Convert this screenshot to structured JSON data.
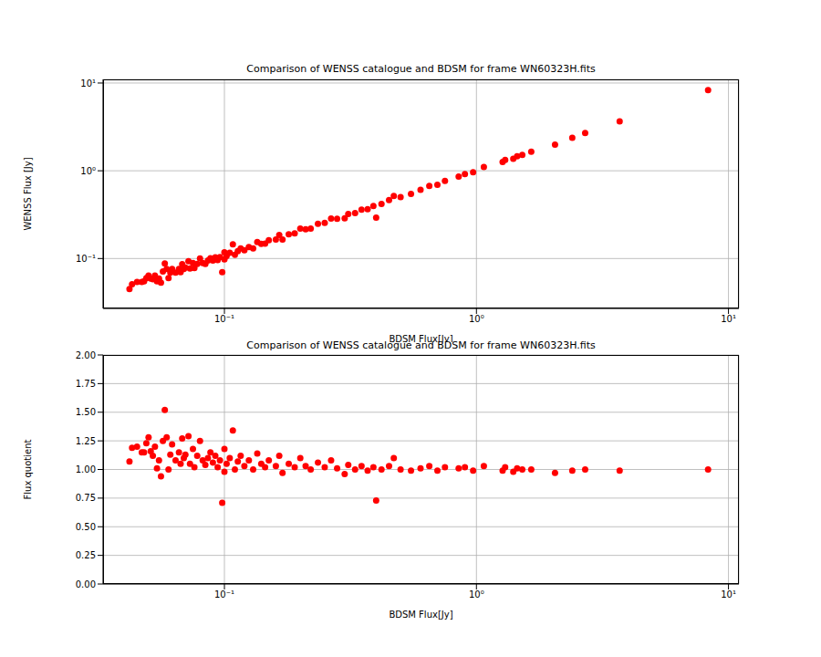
{
  "chart_data": [
    {
      "type": "scatter",
      "title": "Comparison of WENSS catalogue and BDSM for frame WN60323H.fits",
      "x_label": "BDSM Flux[Jy]",
      "y_label": "WENSS Flux [Jy]",
      "log": true,
      "grid": true,
      "color": "#ff0000",
      "marker": "o",
      "xlim": [
        0.033,
        11
      ],
      "ylim": [
        0.027,
        11
      ],
      "xticks": [
        {
          "value": 0.1,
          "label": "10⁻¹"
        },
        {
          "value": 1,
          "label": "10⁰"
        },
        {
          "value": 10,
          "label": "10¹"
        }
      ],
      "yticks": [
        {
          "value": 0.1,
          "label": "10⁻¹"
        },
        {
          "value": 1,
          "label": "10⁰"
        },
        {
          "value": 10,
          "label": "10¹"
        }
      ],
      "x": [
        0.042,
        0.043,
        0.045,
        0.047,
        0.048,
        0.049,
        0.05,
        0.051,
        0.052,
        0.053,
        0.054,
        0.055,
        0.056,
        0.057,
        0.058,
        0.059,
        0.06,
        0.061,
        0.062,
        0.064,
        0.066,
        0.067,
        0.068,
        0.069,
        0.07,
        0.072,
        0.073,
        0.075,
        0.076,
        0.078,
        0.08,
        0.082,
        0.084,
        0.086,
        0.088,
        0.09,
        0.092,
        0.094,
        0.096,
        0.098,
        0.1,
        0.1,
        0.102,
        0.105,
        0.108,
        0.11,
        0.113,
        0.116,
        0.12,
        0.125,
        0.13,
        0.135,
        0.14,
        0.145,
        0.15,
        0.16,
        0.165,
        0.17,
        0.18,
        0.19,
        0.2,
        0.21,
        0.22,
        0.235,
        0.25,
        0.265,
        0.28,
        0.3,
        0.31,
        0.33,
        0.35,
        0.37,
        0.39,
        0.4,
        0.42,
        0.45,
        0.47,
        0.5,
        0.55,
        0.6,
        0.65,
        0.7,
        0.75,
        0.85,
        0.9,
        0.97,
        1.07,
        1.27,
        1.3,
        1.4,
        1.45,
        1.52,
        1.65,
        2.05,
        2.4,
        2.7,
        3.7,
        8.3
      ],
      "values": [
        0.045,
        0.051,
        0.054,
        0.054,
        0.055,
        0.06,
        0.064,
        0.059,
        0.058,
        0.064,
        0.055,
        0.059,
        0.053,
        0.071,
        0.088,
        0.076,
        0.06,
        0.069,
        0.076,
        0.069,
        0.076,
        0.07,
        0.086,
        0.076,
        0.079,
        0.093,
        0.077,
        0.089,
        0.078,
        0.087,
        0.1,
        0.089,
        0.087,
        0.095,
        0.101,
        0.095,
        0.103,
        0.096,
        0.104,
        0.07,
        0.098,
        0.118,
        0.107,
        0.116,
        0.145,
        0.11,
        0.121,
        0.13,
        0.124,
        0.135,
        0.13,
        0.154,
        0.147,
        0.148,
        0.162,
        0.165,
        0.185,
        0.165,
        0.189,
        0.194,
        0.22,
        0.216,
        0.22,
        0.249,
        0.255,
        0.286,
        0.283,
        0.288,
        0.322,
        0.33,
        0.361,
        0.366,
        0.398,
        0.292,
        0.42,
        0.464,
        0.517,
        0.5,
        0.545,
        0.606,
        0.67,
        0.693,
        0.765,
        0.859,
        0.918,
        0.96,
        1.102,
        1.257,
        1.326,
        1.372,
        1.465,
        1.52,
        1.65,
        1.989,
        2.376,
        2.7,
        3.663,
        8.3
      ]
    },
    {
      "type": "scatter",
      "title": "Comparison of WENSS catalogue and BDSM for frame WN60323H.fits",
      "x_label": "BDSM Flux[Jy]",
      "y_label": "Flux quotient",
      "log": "x",
      "grid": true,
      "color": "#ff0000",
      "marker": "o",
      "xlim": [
        0.033,
        11
      ],
      "ylim": [
        0,
        2
      ],
      "xticks": [
        {
          "value": 0.1,
          "label": "10⁻¹"
        },
        {
          "value": 1,
          "label": "10⁰"
        },
        {
          "value": 10,
          "label": "10¹"
        }
      ],
      "yticks": [
        {
          "value": 0,
          "label": "0.00"
        },
        {
          "value": 0.25,
          "label": "0.25"
        },
        {
          "value": 0.5,
          "label": "0.50"
        },
        {
          "value": 0.75,
          "label": "0.75"
        },
        {
          "value": 1,
          "label": "1.00"
        },
        {
          "value": 1.25,
          "label": "1.25"
        },
        {
          "value": 1.5,
          "label": "1.50"
        },
        {
          "value": 1.75,
          "label": "1.75"
        },
        {
          "value": 2,
          "label": "2.00"
        }
      ],
      "x": [
        0.042,
        0.043,
        0.045,
        0.047,
        0.048,
        0.049,
        0.05,
        0.051,
        0.052,
        0.053,
        0.054,
        0.055,
        0.056,
        0.057,
        0.058,
        0.059,
        0.06,
        0.061,
        0.062,
        0.064,
        0.066,
        0.067,
        0.068,
        0.069,
        0.07,
        0.072,
        0.073,
        0.075,
        0.076,
        0.078,
        0.08,
        0.082,
        0.084,
        0.086,
        0.088,
        0.09,
        0.092,
        0.094,
        0.096,
        0.098,
        0.1,
        0.1,
        0.102,
        0.105,
        0.108,
        0.11,
        0.113,
        0.116,
        0.12,
        0.125,
        0.13,
        0.135,
        0.14,
        0.145,
        0.15,
        0.16,
        0.165,
        0.17,
        0.18,
        0.19,
        0.2,
        0.21,
        0.22,
        0.235,
        0.25,
        0.265,
        0.28,
        0.3,
        0.31,
        0.33,
        0.35,
        0.37,
        0.39,
        0.4,
        0.42,
        0.45,
        0.47,
        0.5,
        0.55,
        0.6,
        0.65,
        0.7,
        0.75,
        0.85,
        0.9,
        0.97,
        1.07,
        1.27,
        1.3,
        1.4,
        1.45,
        1.52,
        1.65,
        2.05,
        2.4,
        2.7,
        3.7,
        8.3
      ],
      "values": [
        1.07,
        1.19,
        1.2,
        1.15,
        1.15,
        1.23,
        1.28,
        1.16,
        1.12,
        1.2,
        1.01,
        1.08,
        0.94,
        1.25,
        1.52,
        1.28,
        1.0,
        1.13,
        1.22,
        1.08,
        1.15,
        1.05,
        1.27,
        1.1,
        1.13,
        1.29,
        1.05,
        1.18,
        1.02,
        1.12,
        1.25,
        1.08,
        1.04,
        1.1,
        1.15,
        1.06,
        1.12,
        1.02,
        1.08,
        0.71,
        0.98,
        1.18,
        1.05,
        1.1,
        1.34,
        1.0,
        1.07,
        1.12,
        1.03,
        1.08,
        1.0,
        1.14,
        1.05,
        1.02,
        1.08,
        1.03,
        1.12,
        0.97,
        1.05,
        1.02,
        1.1,
        1.03,
        1.0,
        1.06,
        1.02,
        1.08,
        1.01,
        0.96,
        1.04,
        1.0,
        1.03,
        0.99,
        1.02,
        0.73,
        1.0,
        1.03,
        1.1,
        1.0,
        0.99,
        1.01,
        1.03,
        0.99,
        1.02,
        1.01,
        1.02,
        0.99,
        1.03,
        0.99,
        1.02,
        0.98,
        1.01,
        1.0,
        1.0,
        0.97,
        0.99,
        1.0,
        0.99,
        1.0
      ]
    }
  ]
}
